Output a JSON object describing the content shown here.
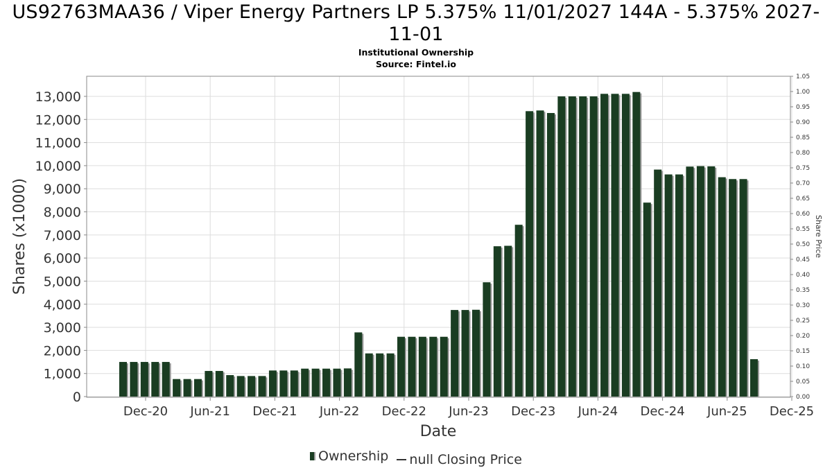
{
  "header": {
    "title": "US92763MAA36 / Viper Energy Partners LP 5.375% 11/01/2027 144A - 5.375% 2027-11-01",
    "subtitle": "Institutional Ownership",
    "source": "Source: Fintel.io"
  },
  "legend": {
    "ownership_label": "Ownership",
    "price_label": "null Closing Price"
  },
  "colors": {
    "bar": "#1a3d22",
    "bar_shadow": "#9a9a9a",
    "grid": "#dddddd",
    "axis": "#888888"
  },
  "chart_data": {
    "type": "bar",
    "title": "US92763MAA36 / Viper Energy Partners LP 5.375% 11/01/2027 144A - 5.375% 2027-11-01",
    "xlabel": "Date",
    "ylabel": "Shares (x1000)",
    "y2label": "Share Price",
    "ylim": [
      0,
      13600
    ],
    "y2lim": [
      0,
      1.05
    ],
    "yticks": [
      0,
      1000,
      2000,
      3000,
      4000,
      5000,
      6000,
      7000,
      8000,
      9000,
      10000,
      11000,
      12000,
      13000
    ],
    "y2ticks": [
      "0.00",
      "0.05",
      "0.10",
      "0.15",
      "0.20",
      "0.25",
      "0.30",
      "0.35",
      "0.40",
      "0.45",
      "0.50",
      "0.55",
      "0.60",
      "0.65",
      "0.70",
      "0.75",
      "0.80",
      "0.85",
      "0.90",
      "0.95",
      "1.00",
      "1.05"
    ],
    "xticks": [
      "Dec-20",
      "Jun-21",
      "Dec-21",
      "Jun-22",
      "Dec-22",
      "Jun-23",
      "Dec-23",
      "Jun-24",
      "Dec-24",
      "Jun-25",
      "Dec-25"
    ],
    "grid": true,
    "legend_position": "bottom",
    "series": [
      {
        "name": "Ownership",
        "values": [
          1500,
          1500,
          1500,
          1500,
          1500,
          760,
          760,
          760,
          1110,
          1110,
          930,
          890,
          890,
          890,
          1130,
          1130,
          1130,
          1210,
          1210,
          1210,
          1210,
          1220,
          2780,
          1870,
          1870,
          1870,
          2590,
          2590,
          2590,
          2590,
          2590,
          3750,
          3750,
          3760,
          4950,
          6510,
          6530,
          7440,
          12360,
          12390,
          12280,
          13000,
          13000,
          13000,
          13000,
          13110,
          13110,
          13110,
          13190,
          8400,
          9830,
          9620,
          9620,
          9960,
          9980,
          9970,
          9500,
          9420,
          9420,
          1620
        ]
      }
    ]
  }
}
